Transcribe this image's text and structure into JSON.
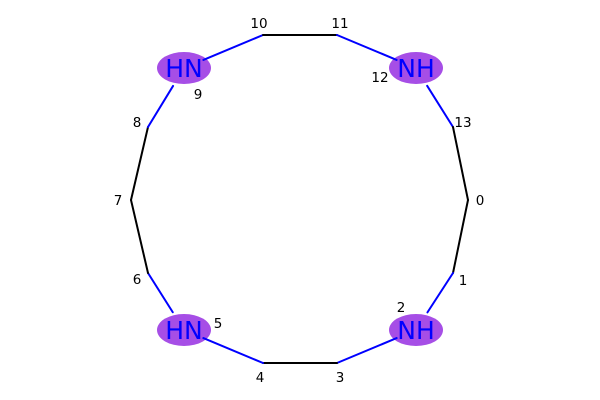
{
  "molecule": {
    "atoms": [
      {
        "index": "0",
        "element": "C",
        "label": ""
      },
      {
        "index": "1",
        "element": "C",
        "label": ""
      },
      {
        "index": "2",
        "element": "N",
        "label": "NH",
        "highlight": "#a64ee6"
      },
      {
        "index": "3",
        "element": "C",
        "label": ""
      },
      {
        "index": "4",
        "element": "C",
        "label": ""
      },
      {
        "index": "5",
        "element": "N",
        "label": "HN",
        "highlight": "#a64ee6"
      },
      {
        "index": "6",
        "element": "C",
        "label": ""
      },
      {
        "index": "7",
        "element": "C",
        "label": ""
      },
      {
        "index": "8",
        "element": "C",
        "label": ""
      },
      {
        "index": "9",
        "element": "N",
        "label": "HN",
        "highlight": "#a64ee6"
      },
      {
        "index": "10",
        "element": "C",
        "label": ""
      },
      {
        "index": "11",
        "element": "C",
        "label": ""
      },
      {
        "index": "12",
        "element": "N",
        "label": "NH",
        "highlight": "#a64ee6"
      },
      {
        "index": "13",
        "element": "C",
        "label": ""
      }
    ],
    "bonds": [
      [
        0,
        1
      ],
      [
        1,
        2
      ],
      [
        2,
        3
      ],
      [
        3,
        4
      ],
      [
        4,
        5
      ],
      [
        5,
        6
      ],
      [
        6,
        7
      ],
      [
        7,
        8
      ],
      [
        8,
        9
      ],
      [
        9,
        10
      ],
      [
        10,
        11
      ],
      [
        11,
        12
      ],
      [
        12,
        13
      ],
      [
        13,
        0
      ]
    ],
    "colors": {
      "carbon_bond": "#000000",
      "nitrogen": "#0000ff",
      "highlight": "#a64ee6"
    }
  }
}
